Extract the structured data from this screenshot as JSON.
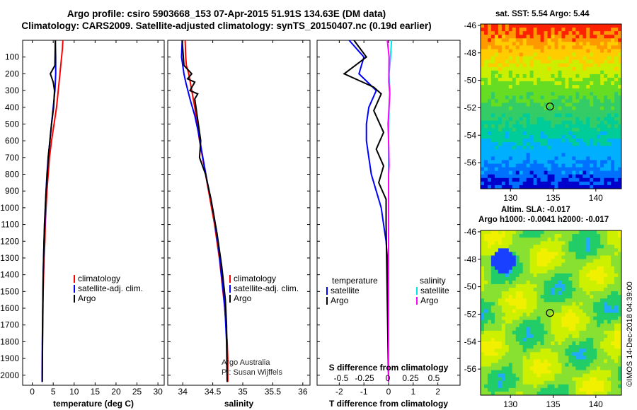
{
  "figure": {
    "title_line1": "Argo profile: csiro 5903668_153 07-Apr-2015 51.91S 134.63E (DM data)",
    "title_line2": "Climatology: CARS2009. Satellite-adjusted climatology: synTS_20150407.nc (0.19d earlier)",
    "credit_line1": "Argo Australia",
    "credit_line2": "PI: Susan Wijffels",
    "stamp": "©IMOS 14-Dec-2018 04:39:00"
  },
  "colors": {
    "climatology": "#ff0000",
    "satellite": "#0000ff",
    "argo": "#000000",
    "salinity_satellite": "#00e5e5",
    "salinity_argo": "#ff00ff"
  },
  "maps": {
    "sst_title": "sat. SST: 5.54 Argo: 5.44",
    "sla_title1": "Altim. SLA: -0.017",
    "sla_title2": "Argo h1000: -0.0041 h2000: -0.017",
    "lat_ticks": [
      -46,
      -48,
      -50,
      -52,
      -54,
      -56
    ],
    "lon_ticks": [
      130,
      135,
      140
    ],
    "float_lon": 134.63,
    "float_lat": -51.91
  },
  "chart_data": [
    {
      "type": "line",
      "xlabel": "temperature (deg C)",
      "ylabel": "",
      "xticks": [
        0,
        5,
        10,
        15,
        20,
        25,
        30
      ],
      "yticks": [
        100,
        200,
        300,
        400,
        500,
        600,
        700,
        800,
        900,
        1000,
        1100,
        1200,
        1300,
        1400,
        1500,
        1600,
        1700,
        1800,
        1900,
        2000
      ],
      "ylim": [
        2060,
        0
      ],
      "legend": [
        "climatology",
        "satellite-adj. clim.",
        "Argo"
      ],
      "series": [
        {
          "name": "climatology",
          "color": "#ff0000",
          "x": [
            7.3,
            7.2,
            7.0,
            6.6,
            6.2,
            5.8,
            5.2,
            4.6,
            4.1,
            3.8,
            3.5,
            3.3,
            3.1,
            3.0,
            2.8,
            2.7,
            2.6,
            2.55,
            2.5,
            2.45,
            2.4,
            2.35
          ],
          "y": [
            0,
            50,
            100,
            200,
            300,
            400,
            500,
            600,
            700,
            800,
            900,
            1000,
            1100,
            1200,
            1300,
            1400,
            1500,
            1600,
            1700,
            1800,
            1900,
            2040
          ]
        },
        {
          "name": "satellite-adj. clim.",
          "color": "#0000ff",
          "x": [
            5.5,
            5.6,
            5.6,
            5.4,
            5.0,
            4.6,
            4.2,
            3.8,
            3.5,
            3.3,
            3.1,
            3.0,
            2.8,
            2.7,
            2.6,
            2.55,
            2.5,
            2.45,
            2.4,
            2.35
          ],
          "y": [
            0,
            100,
            200,
            300,
            400,
            500,
            600,
            700,
            800,
            900,
            1000,
            1100,
            1200,
            1300,
            1400,
            1500,
            1600,
            1700,
            1800,
            2040
          ]
        },
        {
          "name": "Argo",
          "color": "#000000",
          "x": [
            5.5,
            5.4,
            4.3,
            5.0,
            5.3,
            5.1,
            4.6,
            4.2,
            3.8,
            3.6,
            3.3,
            3.1,
            2.9,
            2.8,
            2.7,
            2.6,
            2.55,
            2.5,
            2.45,
            2.4
          ],
          "y": [
            0,
            150,
            200,
            250,
            300,
            400,
            500,
            600,
            700,
            800,
            900,
            1000,
            1100,
            1200,
            1300,
            1400,
            1500,
            1600,
            1800,
            2040
          ]
        }
      ]
    },
    {
      "type": "line",
      "xlabel": "salinity",
      "ylabel": "",
      "xticks": [
        34,
        34.5,
        35,
        35.5,
        36
      ],
      "ylim": [
        2060,
        0
      ],
      "legend": [
        "climatology",
        "satellite-adj. clim.",
        "Argo"
      ],
      "series": [
        {
          "name": "climatology",
          "color": "#ff0000",
          "x": [
            34.04,
            34.05,
            34.06,
            34.1,
            34.15,
            34.2,
            34.24,
            34.28,
            34.33,
            34.38,
            34.43,
            34.48,
            34.53,
            34.57,
            34.61,
            34.64,
            34.67,
            34.7,
            34.72,
            34.74,
            34.75,
            34.75
          ],
          "y": [
            0,
            100,
            150,
            200,
            300,
            400,
            500,
            600,
            700,
            800,
            900,
            1000,
            1100,
            1200,
            1300,
            1400,
            1500,
            1600,
            1700,
            1800,
            1900,
            2040
          ]
        },
        {
          "name": "satellite-adj. clim.",
          "color": "#0000ff",
          "x": [
            33.99,
            33.98,
            34.02,
            34.05,
            34.12,
            34.2,
            34.26,
            34.31,
            34.36,
            34.41,
            34.47,
            34.52,
            34.56,
            34.6,
            34.63,
            34.66,
            34.69,
            34.71,
            34.73,
            34.74
          ],
          "y": [
            0,
            100,
            200,
            250,
            350,
            450,
            550,
            650,
            750,
            850,
            950,
            1050,
            1150,
            1250,
            1350,
            1450,
            1550,
            1650,
            1800,
            2040
          ]
        },
        {
          "name": "Argo",
          "color": "#000000",
          "x": [
            33.99,
            34.02,
            34.15,
            34.08,
            34.2,
            34.12,
            34.25,
            34.2,
            34.3,
            34.28,
            34.38,
            34.47,
            34.52,
            34.57,
            34.61,
            34.65,
            34.68,
            34.71,
            34.73,
            34.74
          ],
          "y": [
            0,
            150,
            200,
            230,
            250,
            300,
            320,
            350,
            600,
            700,
            800,
            950,
            1050,
            1150,
            1250,
            1350,
            1450,
            1550,
            1700,
            2040
          ]
        }
      ]
    },
    {
      "type": "line",
      "xlabel": "T difference from climatology",
      "ylabel": "",
      "xticks": [
        -2,
        -1,
        0,
        1,
        2
      ],
      "s_axis_label": "S difference from climatology",
      "s_ticks": [
        "-0.5",
        "-0.25",
        "0",
        "0.25",
        "0.5"
      ],
      "ylim": [
        2060,
        0
      ],
      "legend_left_title": "temperature",
      "legend_right_title": "salinity",
      "legend_left": [
        "satellite",
        "Argo"
      ],
      "legend_right": [
        "satellite",
        "Argo"
      ],
      "series": [
        {
          "name": "temperature satellite",
          "color": "#0000ff",
          "x": [
            -1.6,
            -1.0,
            -1.2,
            -0.5,
            -0.8,
            -0.9,
            -0.9,
            -0.8,
            -0.7,
            -0.5,
            -0.3,
            -0.2,
            -0.1,
            -0.05,
            0.0,
            0.0
          ],
          "y": [
            0,
            100,
            200,
            300,
            400,
            500,
            600,
            700,
            800,
            900,
            1000,
            1100,
            1200,
            1300,
            1500,
            2040
          ]
        },
        {
          "name": "temperature Argo",
          "color": "#000000",
          "x": [
            -1.4,
            -0.9,
            -1.8,
            -0.6,
            -0.3,
            -0.6,
            -0.2,
            -0.5,
            -0.2,
            -0.4,
            -0.1,
            -0.1,
            0.0
          ],
          "y": [
            0,
            100,
            200,
            280,
            320,
            420,
            550,
            650,
            750,
            850,
            950,
            1100,
            2040
          ]
        },
        {
          "name": "salinity satellite",
          "color": "#00e5e5",
          "x": [
            0.12,
            0.08,
            0.02,
            0.05,
            0.02,
            0.01,
            0.0,
            0.0,
            0.0,
            0.0
          ],
          "y": [
            0,
            100,
            200,
            300,
            400,
            500,
            600,
            800,
            1000,
            2040
          ]
        },
        {
          "name": "salinity Argo",
          "color": "#ff00ff",
          "x": [
            -0.05,
            0.02,
            0.01,
            0.05,
            -0.02,
            0.01,
            0.02,
            0.0,
            0.0,
            0.0
          ],
          "y": [
            0,
            100,
            250,
            320,
            500,
            650,
            750,
            800,
            1000,
            2040
          ]
        }
      ]
    }
  ]
}
